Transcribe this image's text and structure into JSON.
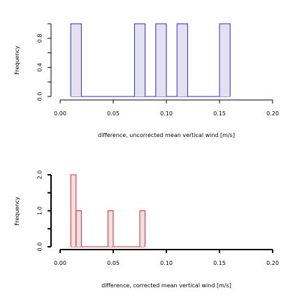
{
  "chart_data": [
    {
      "type": "bar",
      "panel": "top",
      "xlabel": "difference, uncorrected mean vertical wind [m/s]",
      "ylabel": "Frequency",
      "xlim": [
        0.0,
        0.2
      ],
      "ylim": [
        0.0,
        1.0
      ],
      "x_ticks": [
        "0.00",
        "0.05",
        "0.10",
        "0.15",
        "0.20"
      ],
      "y_ticks": [
        "0.0",
        "0.4",
        "0.8"
      ],
      "bins": [
        {
          "x_start": 0.01,
          "x_end": 0.02,
          "value": 1
        },
        {
          "x_start": 0.07,
          "x_end": 0.08,
          "value": 1
        },
        {
          "x_start": 0.09,
          "x_end": 0.1,
          "value": 1
        },
        {
          "x_start": 0.11,
          "x_end": 0.12,
          "value": 1
        },
        {
          "x_start": 0.15,
          "x_end": 0.16,
          "value": 1
        }
      ],
      "fill_color": "#e3e1ef",
      "line_color": "#2b2bd0"
    },
    {
      "type": "bar",
      "panel": "bottom",
      "xlabel": "difference, corrected mean vertical wind [m/s]",
      "ylabel": "Frequency",
      "xlim": [
        0.0,
        0.2
      ],
      "ylim": [
        0.0,
        2.0
      ],
      "x_ticks": [
        "0.00",
        "0.05",
        "0.10",
        "0.15",
        "0.20"
      ],
      "y_ticks": [
        "0.0",
        "1.0",
        "2.0"
      ],
      "bins": [
        {
          "x_start": 0.01,
          "x_end": 0.015,
          "value": 2
        },
        {
          "x_start": 0.015,
          "x_end": 0.02,
          "value": 1
        },
        {
          "x_start": 0.045,
          "x_end": 0.05,
          "value": 1
        },
        {
          "x_start": 0.075,
          "x_end": 0.08,
          "value": 1
        }
      ],
      "fill_color": "#f1dfe3",
      "line_color": "#cc2a2a"
    }
  ]
}
